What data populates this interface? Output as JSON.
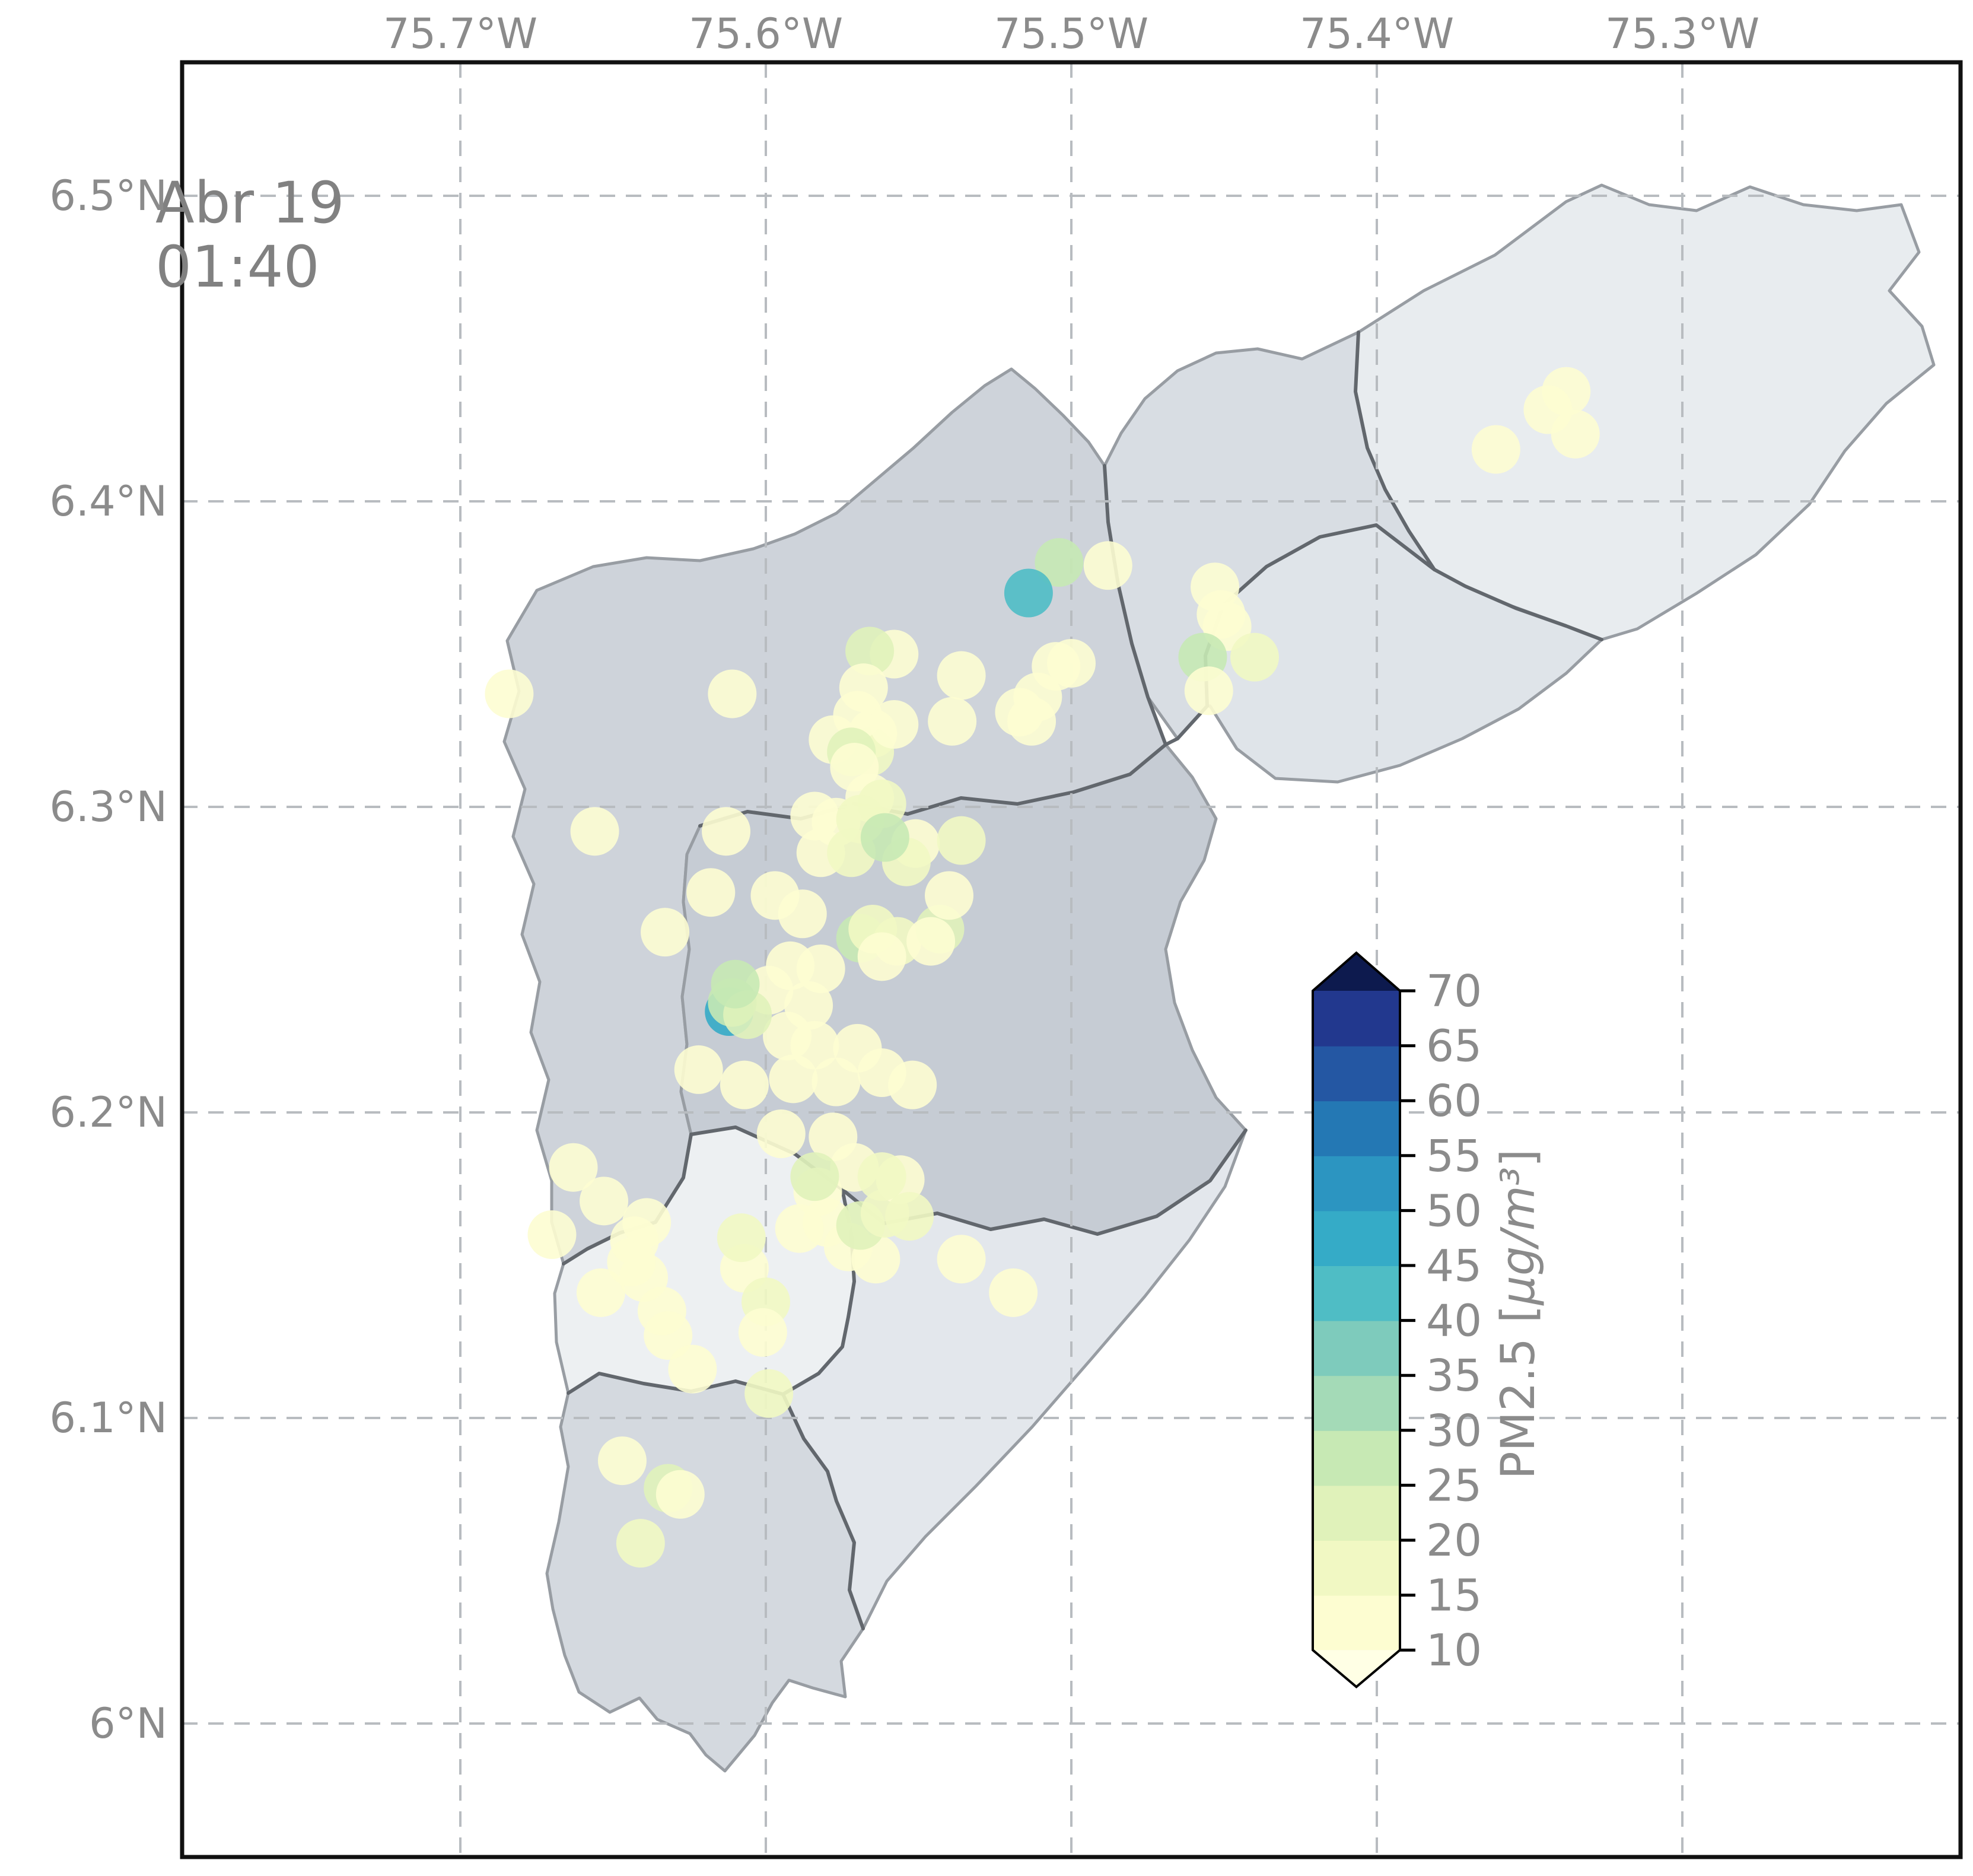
{
  "annotation": {
    "date": "Abr 19",
    "time": "01:40"
  },
  "axes": {
    "top_labels": [
      "75.7°W",
      "75.6°W",
      "75.5°W",
      "75.4°W",
      "75.3°W"
    ],
    "left_labels": [
      "6.5°N",
      "6.4°N",
      "6.3°N",
      "6.2°N",
      "6.1°N",
      "6°N"
    ],
    "lon_ticks": [
      -75.7,
      -75.6,
      -75.5,
      -75.4,
      -75.3
    ],
    "lat_ticks": [
      6.5,
      6.4,
      6.3,
      6.2,
      6.1,
      6.0
    ]
  },
  "colorbar": {
    "label_prefix": "PM2.5 [",
    "label_math": "μg/m³",
    "label_suffix": "]",
    "label_full": "PM2.5 [μg/m³]",
    "tick_values": [
      10,
      15,
      20,
      25,
      30,
      35,
      40,
      45,
      50,
      55,
      60,
      65,
      70
    ],
    "band_colors_low_to_high": [
      "#fdfdd1",
      "#f1f8c3",
      "#e0f2ba",
      "#c7e9b4",
      "#a4dab7",
      "#7ecbbc",
      "#4fbdc5",
      "#35abc7",
      "#2c95c1",
      "#2478b4",
      "#2457a3",
      "#22388e"
    ],
    "extend_low_color": "#ffffe5",
    "extend_high_color": "#0d1a4e"
  },
  "chart_data": {
    "type": "scatter",
    "projection": "lon-lat map (Valle de Aburrá municipalities)",
    "lon_range": [
      -75.815,
      -75.209
    ],
    "lat_range": [
      5.956,
      6.544
    ],
    "grid": "dashed",
    "value_bins": [
      10,
      15,
      20,
      25,
      30,
      35,
      40,
      45,
      50,
      55,
      60,
      65,
      70
    ],
    "points_format": [
      "lon",
      "lat",
      "pm25_ug_m3"
    ],
    "points": [
      [
        -75.338,
        6.436,
        12
      ],
      [
        -75.344,
        6.43,
        13
      ],
      [
        -75.335,
        6.422,
        12
      ],
      [
        -75.361,
        6.417,
        13
      ],
      [
        -75.453,
        6.372,
        12
      ],
      [
        -75.451,
        6.363,
        13
      ],
      [
        -75.449,
        6.359,
        14
      ],
      [
        -75.457,
        6.349,
        27
      ],
      [
        -75.44,
        6.349,
        17
      ],
      [
        -75.455,
        6.338,
        12
      ],
      [
        -75.504,
        6.38,
        28
      ],
      [
        -75.488,
        6.379,
        13
      ],
      [
        -75.514,
        6.37,
        44
      ],
      [
        -75.536,
        6.343,
        12
      ],
      [
        -75.505,
        6.346,
        13
      ],
      [
        -75.5,
        6.347,
        12
      ],
      [
        -75.511,
        6.336,
        13
      ],
      [
        -75.517,
        6.331,
        12
      ],
      [
        -75.513,
        6.328,
        13
      ],
      [
        -75.558,
        6.35,
        12
      ],
      [
        -75.566,
        6.351,
        21
      ],
      [
        -75.568,
        6.339,
        13
      ],
      [
        -75.565,
        6.324,
        12
      ],
      [
        -75.566,
        6.318,
        17
      ],
      [
        -75.684,
        6.337,
        13
      ],
      [
        -75.611,
        6.337,
        13
      ],
      [
        -75.656,
        6.292,
        13
      ],
      [
        -75.613,
        6.292,
        13
      ],
      [
        -75.618,
        6.272,
        13
      ],
      [
        -75.57,
        6.33,
        12
      ],
      [
        -75.558,
        6.327,
        13
      ],
      [
        -75.539,
        6.328,
        12
      ],
      [
        -75.578,
        6.322,
        12
      ],
      [
        -75.572,
        6.318,
        21
      ],
      [
        -75.571,
        6.313,
        13
      ],
      [
        -75.566,
        6.303,
        11
      ],
      [
        -75.562,
        6.301,
        17
      ],
      [
        -75.584,
        6.297,
        13
      ],
      [
        -75.577,
        6.295,
        12
      ],
      [
        -75.569,
        6.296,
        18
      ],
      [
        -75.582,
        6.285,
        12
      ],
      [
        -75.572,
        6.285,
        17
      ],
      [
        -75.551,
        6.288,
        11
      ],
      [
        -75.554,
        6.282,
        17
      ],
      [
        -75.561,
        6.29,
        26
      ],
      [
        -75.597,
        6.271,
        13
      ],
      [
        -75.588,
        6.265,
        11
      ],
      [
        -75.569,
        6.257,
        27
      ],
      [
        -75.565,
        6.26,
        17
      ],
      [
        -75.557,
        6.256,
        18
      ],
      [
        -75.562,
        6.251,
        13
      ],
      [
        -75.543,
        6.26,
        22
      ],
      [
        -75.54,
        6.271,
        12
      ],
      [
        -75.546,
        6.256,
        12
      ],
      [
        -75.592,
        6.248,
        12
      ],
      [
        -75.582,
        6.247,
        13
      ],
      [
        -75.599,
        6.24,
        13
      ],
      [
        -75.586,
        6.235,
        12
      ],
      [
        -75.612,
        6.233,
        45
      ],
      [
        -75.536,
        6.289,
        17
      ],
      [
        -75.593,
        6.225,
        12
      ],
      [
        -75.584,
        6.222,
        13
      ],
      [
        -75.57,
        6.221,
        12
      ],
      [
        -75.562,
        6.213,
        13
      ],
      [
        -75.552,
        6.209,
        12
      ],
      [
        -75.577,
        6.21,
        12
      ],
      [
        -75.591,
        6.211,
        13
      ],
      [
        -75.595,
        6.193,
        12
      ],
      [
        -75.578,
        6.192,
        13
      ],
      [
        -75.571,
        6.182,
        12
      ],
      [
        -75.583,
        6.174,
        13
      ],
      [
        -75.58,
        6.164,
        12
      ],
      [
        -75.589,
        6.162,
        13
      ],
      [
        -75.573,
        6.156,
        12
      ],
      [
        -75.564,
        6.152,
        13
      ],
      [
        -75.569,
        6.163,
        22
      ],
      [
        -75.561,
        6.167,
        17
      ],
      [
        -75.556,
        6.178,
        12
      ],
      [
        -75.562,
        6.179,
        17
      ],
      [
        -75.553,
        6.166,
        17
      ],
      [
        -75.584,
        6.179,
        21
      ],
      [
        -75.607,
        6.149,
        13
      ],
      [
        -75.6,
        6.138,
        17
      ],
      [
        -75.601,
        6.128,
        13
      ],
      [
        -75.599,
        6.108,
        17
      ],
      [
        -75.536,
        6.152,
        12
      ],
      [
        -75.519,
        6.141,
        12
      ],
      [
        -75.654,
        6.141,
        13
      ],
      [
        -75.644,
        6.151,
        12
      ],
      [
        -75.64,
        6.146,
        13
      ],
      [
        -75.634,
        6.135,
        13
      ],
      [
        -75.632,
        6.127,
        12
      ],
      [
        -75.624,
        6.116,
        12
      ],
      [
        -75.647,
        6.086,
        13
      ],
      [
        -75.632,
        6.077,
        21
      ],
      [
        -75.628,
        6.075,
        12
      ],
      [
        -75.641,
        6.059,
        17
      ],
      [
        -75.67,
        6.16,
        13
      ],
      [
        -75.653,
        6.171,
        12
      ],
      [
        -75.643,
        6.158,
        12
      ],
      [
        -75.639,
        6.164,
        13
      ],
      [
        -75.633,
        6.259,
        12
      ],
      [
        -75.663,
        6.182,
        13
      ],
      [
        -75.622,
        6.214,
        13
      ],
      [
        -75.607,
        6.209,
        12
      ],
      [
        -75.611,
        6.236,
        26
      ],
      [
        -75.606,
        6.232,
        21
      ],
      [
        -75.61,
        6.242,
        27
      ],
      [
        -75.608,
        6.159,
        17
      ]
    ]
  }
}
